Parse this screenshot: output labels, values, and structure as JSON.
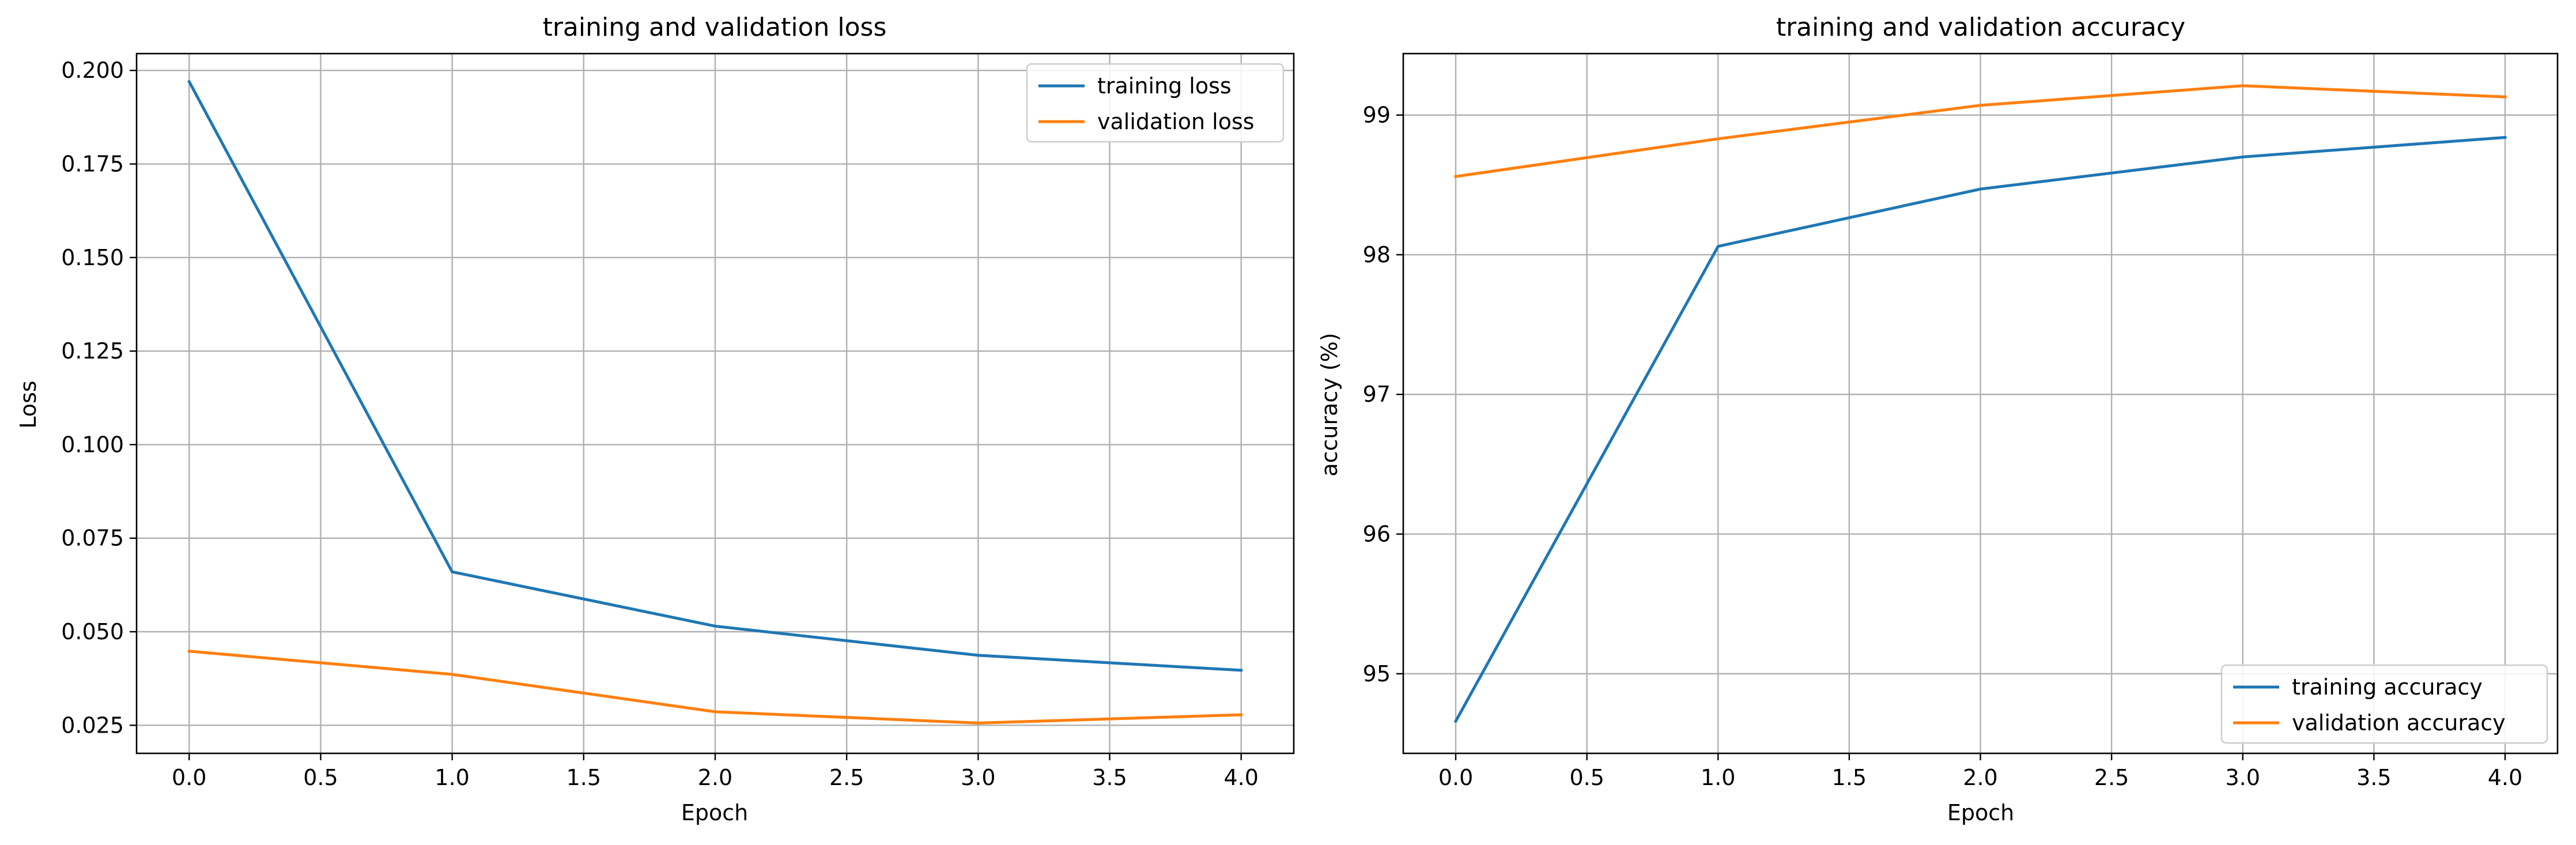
{
  "colors": {
    "training": "#1f77b4",
    "validation": "#ff7f0e",
    "grid": "#b0b0b0",
    "axes": "#000000"
  },
  "chart_data": [
    {
      "type": "line",
      "title": "training and validation loss",
      "xlabel": "Epoch",
      "ylabel": "Loss",
      "xlim": [
        -0.2,
        4.2
      ],
      "ylim": [
        0.0175,
        0.2045
      ],
      "xticks": [
        0.0,
        0.5,
        1.0,
        1.5,
        2.0,
        2.5,
        3.0,
        3.5,
        4.0
      ],
      "xtick_labels": [
        "0.0",
        "0.5",
        "1.0",
        "1.5",
        "2.0",
        "2.5",
        "3.0",
        "3.5",
        "4.0"
      ],
      "yticks": [
        0.025,
        0.05,
        0.075,
        0.1,
        0.125,
        0.15,
        0.175,
        0.2
      ],
      "ytick_labels": [
        "0.025",
        "0.050",
        "0.075",
        "0.100",
        "0.125",
        "0.150",
        "0.175",
        "0.200"
      ],
      "grid": true,
      "legend_position": "upper right",
      "x": [
        0,
        1,
        2,
        3,
        4
      ],
      "series": [
        {
          "name": "training loss",
          "values": [
            0.197,
            0.066,
            0.0515,
            0.0437,
            0.0397
          ]
        },
        {
          "name": "validation loss",
          "values": [
            0.0448,
            0.0386,
            0.0286,
            0.0256,
            0.0278
          ]
        }
      ]
    },
    {
      "type": "line",
      "title": "training and validation accuracy",
      "xlabel": "Epoch",
      "ylabel": "accuracy (%)",
      "xlim": [
        -0.2,
        4.2
      ],
      "ylim": [
        94.43,
        99.44
      ],
      "xticks": [
        0.0,
        0.5,
        1.0,
        1.5,
        2.0,
        2.5,
        3.0,
        3.5,
        4.0
      ],
      "xtick_labels": [
        "0.0",
        "0.5",
        "1.0",
        "1.5",
        "2.0",
        "2.5",
        "3.0",
        "3.5",
        "4.0"
      ],
      "yticks": [
        95,
        96,
        97,
        98,
        99
      ],
      "ytick_labels": [
        "95",
        "96",
        "97",
        "98",
        "99"
      ],
      "grid": true,
      "legend_position": "lower right",
      "x": [
        0,
        1,
        2,
        3,
        4
      ],
      "series": [
        {
          "name": "training accuracy",
          "values": [
            94.66,
            98.06,
            98.47,
            98.7,
            98.84
          ]
        },
        {
          "name": "validation accuracy",
          "values": [
            98.56,
            98.83,
            99.07,
            99.21,
            99.13
          ]
        }
      ]
    }
  ]
}
